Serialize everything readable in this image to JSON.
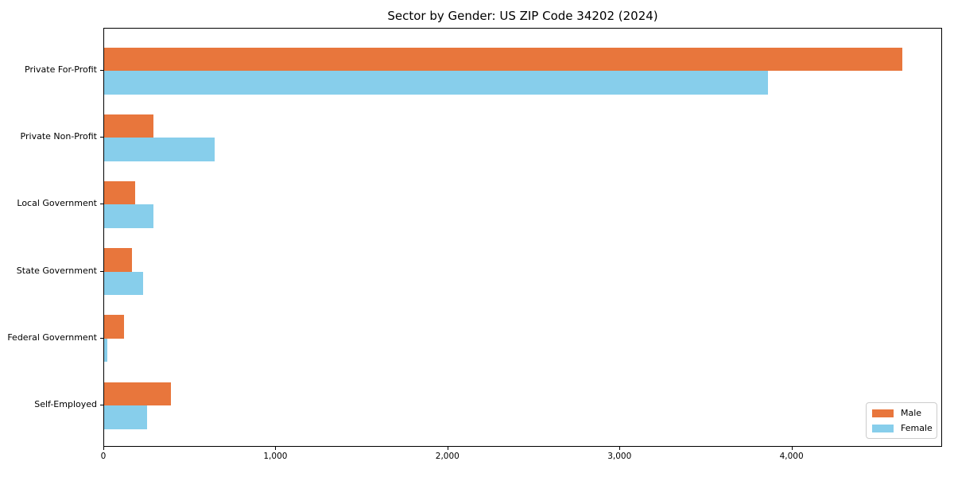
{
  "title": "Sector by Gender: US ZIP Code 34202 (2024)",
  "chart_data": {
    "type": "bar",
    "orientation": "horizontal",
    "title": "Sector by Gender: US ZIP Code 34202 (2024)",
    "xlabel": "",
    "ylabel": "",
    "categories": [
      "Private For-Profit",
      "Private Non-Profit",
      "Local Government",
      "State Government",
      "Federal Government",
      "Self-Employed"
    ],
    "series": [
      {
        "name": "Male",
        "color": "#e8763c",
        "values": [
          4640,
          285,
          180,
          160,
          115,
          390
        ]
      },
      {
        "name": "Female",
        "color": "#87ceeb",
        "values": [
          3860,
          640,
          285,
          225,
          18,
          250
        ]
      }
    ],
    "xlim": [
      0,
      4875
    ],
    "x_ticks": [
      0,
      1000,
      2000,
      3000,
      4000
    ],
    "x_tick_labels": [
      "0",
      "1,000",
      "2,000",
      "3,000",
      "4,000"
    ],
    "grid": false,
    "legend_position": "lower right",
    "colors": {
      "male": "#e8763c",
      "female": "#87ceeb",
      "axis": "#000000",
      "background": "#ffffff",
      "legend_border": "#cccccc"
    }
  }
}
